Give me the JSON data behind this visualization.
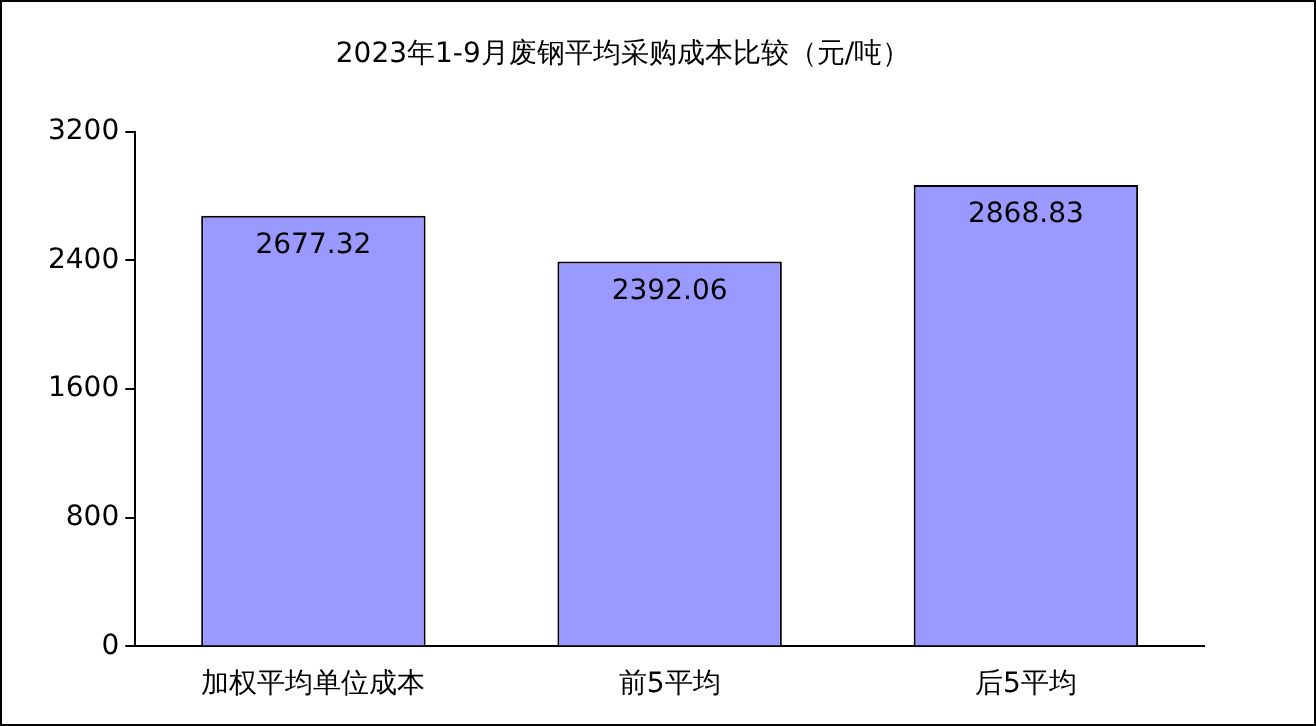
{
  "chart_data": {
    "type": "bar",
    "title": "2023年1-9月废钢平均采购成本比较（元/吨）",
    "categories": [
      "加权平均单位成本",
      "前5平均",
      "后5平均"
    ],
    "values": [
      2677.32,
      2392.06,
      2868.83
    ],
    "color": "#9999ff",
    "ylim": [
      0,
      3200
    ],
    "yticks": [
      0,
      800,
      1600,
      2400,
      3200
    ],
    "data_labels": true,
    "legend": false
  }
}
